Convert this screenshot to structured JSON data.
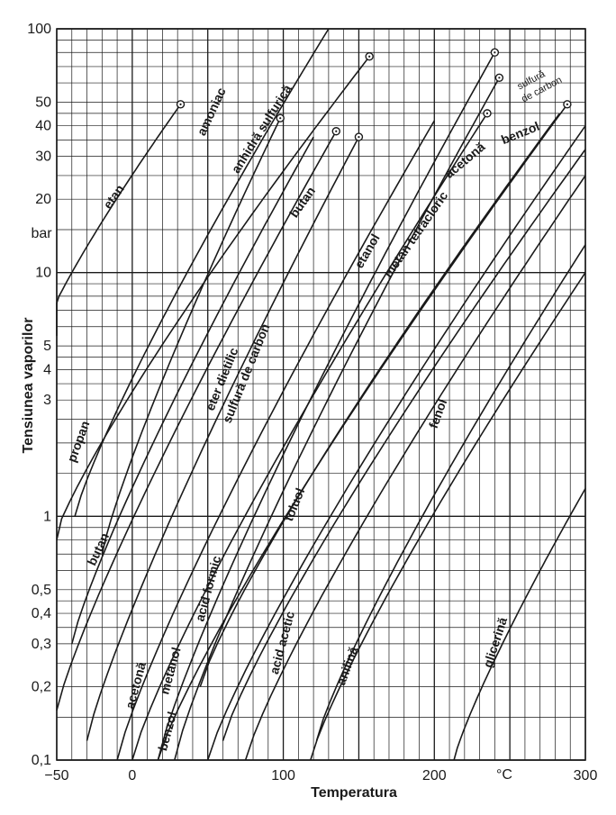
{
  "chart_data": {
    "type": "line",
    "title": "",
    "xlabel": "Temperatura",
    "ylabel": "Tensiunea vaporilor",
    "yunit": "bar",
    "xunit": "°C",
    "xlim": [
      -50,
      300
    ],
    "ylim": [
      0.1,
      100
    ],
    "yscale": "log",
    "grid": true,
    "xticks": [
      {
        "v": -50,
        "label": "−50"
      },
      {
        "v": 0,
        "label": "0"
      },
      {
        "v": 100,
        "label": "100"
      },
      {
        "v": 200,
        "label": "200"
      },
      {
        "v": 300,
        "label": "300"
      }
    ],
    "yticks": [
      {
        "v": 0.1,
        "label": "0,1"
      },
      {
        "v": 0.2,
        "label": "0,2"
      },
      {
        "v": 0.3,
        "label": "0,3"
      },
      {
        "v": 0.4,
        "label": "0,4"
      },
      {
        "v": 0.5,
        "label": "0,5"
      },
      {
        "v": 1,
        "label": "1"
      },
      {
        "v": 3,
        "label": "3"
      },
      {
        "v": 4,
        "label": "4"
      },
      {
        "v": 5,
        "label": "5"
      },
      {
        "v": 10,
        "label": "10"
      },
      {
        "v": 20,
        "label": "20"
      },
      {
        "v": 30,
        "label": "30"
      },
      {
        "v": 40,
        "label": "40"
      },
      {
        "v": 50,
        "label": "50"
      },
      {
        "v": 100,
        "label": "100"
      }
    ],
    "series": [
      {
        "name": "etan",
        "x": [
          -60,
          32
        ],
        "y": [
          5.5,
          49
        ],
        "critical": true,
        "label": {
          "x": -10,
          "y": 20,
          "rot": -55
        }
      },
      {
        "name": "amoniac",
        "x": [
          -38,
          130
        ],
        "y": [
          1.0,
          100
        ],
        "critical": false,
        "label": {
          "x": 55,
          "y": 45,
          "rot": -65
        }
      },
      {
        "name": "anhidră sulfurică",
        "x": [
          -20,
          98
        ],
        "y": [
          0.7,
          43
        ],
        "critical": true,
        "label": {
          "x": 88,
          "y": 38,
          "rot": -58
        }
      },
      {
        "name": "propan",
        "x": [
          -52,
          157
        ],
        "y": [
          0.8,
          77
        ],
        "critical": true,
        "label": {
          "x": -33,
          "y": 2.0,
          "rot": -70
        }
      },
      {
        "name": "butan",
        "x": [
          -50,
          135
        ],
        "y": [
          0.16,
          38
        ],
        "critical": true,
        "label": {
          "x": 115,
          "y": 19,
          "rot": -55
        }
      },
      {
        "name": "butan",
        "x": [
          -40,
          120
        ],
        "y": [
          0.3,
          36
        ],
        "critical": false,
        "label": {
          "x": -20,
          "y": 0.72,
          "rot": -65
        }
      },
      {
        "name": "eter dietilic",
        "x": [
          -30,
          150
        ],
        "y": [
          0.12,
          36
        ],
        "critical": true,
        "label": {
          "x": 62,
          "y": 3.6,
          "rot": -68
        }
      },
      {
        "name": "sulfură de carbon",
        "x": [
          -10,
          200
        ],
        "y": [
          0.1,
          42
        ],
        "critical": false,
        "label": {
          "x": 78,
          "y": 3.8,
          "rot": -68
        }
      },
      {
        "name": "acetonă",
        "x": [
          0,
          235
        ],
        "y": [
          0.1,
          45
        ],
        "critical": true,
        "label": {
          "x": 5,
          "y": 0.2,
          "rot": -75
        }
      },
      {
        "name": "metanol",
        "x": [
          17,
          240
        ],
        "y": [
          0.1,
          80
        ],
        "critical": true,
        "label": {
          "x": 28,
          "y": 0.23,
          "rot": -75
        }
      },
      {
        "name": "benzol",
        "x": [
          17,
          288
        ],
        "y": [
          0.1,
          49
        ],
        "critical": true,
        "label": {
          "x": 26,
          "y": 0.13,
          "rot": -75
        }
      },
      {
        "name": "etanol",
        "x": [
          28,
          243
        ],
        "y": [
          0.1,
          63
        ],
        "critical": true,
        "label": {
          "x": 158,
          "y": 12,
          "rot": -60
        }
      },
      {
        "name": "metan tetracloric",
        "x": [
          45,
          283
        ],
        "y": [
          0.2,
          45
        ],
        "critical": false,
        "label": {
          "x": 190,
          "y": 14,
          "rot": -55
        }
      },
      {
        "name": "acid formic",
        "x": [
          50,
          300
        ],
        "y": [
          0.1,
          40
        ],
        "critical": false,
        "label": {
          "x": 53,
          "y": 0.5,
          "rot": -75
        }
      },
      {
        "name": "toluol",
        "x": [
          60,
          300
        ],
        "y": [
          0.12,
          32
        ],
        "critical": false,
        "label": {
          "x": 110,
          "y": 1.1,
          "rot": -68
        }
      },
      {
        "name": "acid acetic",
        "x": [
          75,
          300
        ],
        "y": [
          0.1,
          25
        ],
        "critical": false,
        "label": {
          "x": 102,
          "y": 0.3,
          "rot": -75
        }
      },
      {
        "name": "anilină",
        "x": [
          118,
          300
        ],
        "y": [
          0.1,
          10
        ],
        "critical": false,
        "label": {
          "x": 145,
          "y": 0.24,
          "rot": -70
        }
      },
      {
        "name": "fenol",
        "x": [
          122,
          300
        ],
        "y": [
          0.12,
          13
        ],
        "critical": false,
        "label": {
          "x": 205,
          "y": 2.6,
          "rot": -70
        }
      },
      {
        "name": "glicerină",
        "x": [
          213,
          300
        ],
        "y": [
          0.1,
          1.3
        ],
        "critical": false,
        "label": {
          "x": 243,
          "y": 0.3,
          "rot": -72
        }
      }
    ],
    "annotations": [
      {
        "text": "sulfură",
        "x": 265,
        "y": 60,
        "rot": -28,
        "size": "small"
      },
      {
        "text": "de carbon",
        "x": 272,
        "y": 55,
        "rot": -28,
        "size": "small"
      },
      {
        "text": "benzol",
        "x": 258,
        "y": 36,
        "rot": -22,
        "size": "normal"
      },
      {
        "text": "acetonă",
        "x": 222,
        "y": 28,
        "rot": -40,
        "size": "normal"
      }
    ]
  }
}
